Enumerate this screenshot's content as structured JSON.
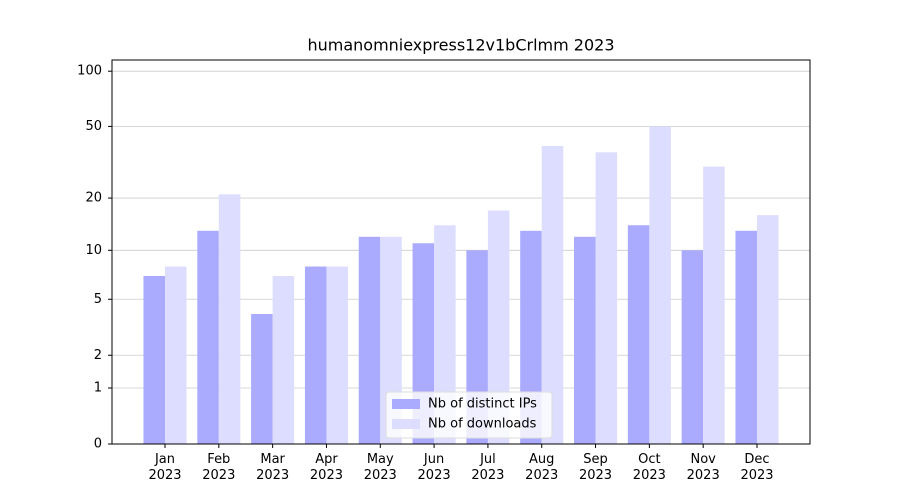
{
  "chart_data": {
    "type": "bar",
    "title": "humanomniexpress12v1bCrlmm 2023",
    "categories": [
      "Jan\n2023",
      "Feb\n2023",
      "Mar\n2023",
      "Apr\n2023",
      "May\n2023",
      "Jun\n2023",
      "Jul\n2023",
      "Aug\n2023",
      "Sep\n2023",
      "Oct\n2023",
      "Nov\n2023",
      "Dec\n2023"
    ],
    "series": [
      {
        "name": "Nb of distinct IPs",
        "color": "#aaaaff",
        "values": [
          7,
          13,
          4,
          8,
          12,
          11,
          10,
          13,
          12,
          14,
          10,
          13
        ]
      },
      {
        "name": "Nb of downloads",
        "color": "#ddddff",
        "values": [
          8,
          21,
          7,
          8,
          12,
          14,
          17,
          39,
          36,
          50,
          30,
          16
        ]
      }
    ],
    "yscale": "log1p",
    "ylim": [
      0,
      115
    ],
    "yticks": [
      0,
      1,
      2,
      5,
      10,
      20,
      50,
      100
    ],
    "grid": true,
    "legend": "lower center"
  }
}
